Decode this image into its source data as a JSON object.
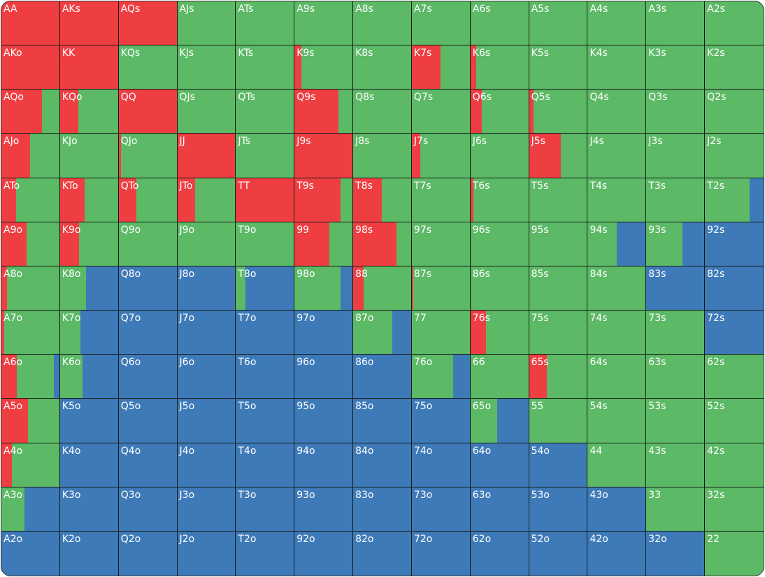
{
  "colors": {
    "raise": "#ef3e42",
    "call": "#5cb966",
    "fold": "#3e7ab8"
  },
  "grid": {
    "rows": [
      [
        {
          "hand": "AA",
          "raise": 1,
          "call": 0,
          "fold": 0
        },
        {
          "hand": "AKs",
          "raise": 1,
          "call": 0,
          "fold": 0
        },
        {
          "hand": "AQs",
          "raise": 1,
          "call": 0,
          "fold": 0
        },
        {
          "hand": "AJs",
          "raise": 0,
          "call": 1,
          "fold": 0
        },
        {
          "hand": "ATs",
          "raise": 0,
          "call": 1,
          "fold": 0
        },
        {
          "hand": "A9s",
          "raise": 0,
          "call": 1,
          "fold": 0
        },
        {
          "hand": "A8s",
          "raise": 0,
          "call": 1,
          "fold": 0
        },
        {
          "hand": "A7s",
          "raise": 0,
          "call": 1,
          "fold": 0
        },
        {
          "hand": "A6s",
          "raise": 0,
          "call": 1,
          "fold": 0
        },
        {
          "hand": "A5s",
          "raise": 0,
          "call": 1,
          "fold": 0
        },
        {
          "hand": "A4s",
          "raise": 0,
          "call": 1,
          "fold": 0
        },
        {
          "hand": "A3s",
          "raise": 0,
          "call": 1,
          "fold": 0
        },
        {
          "hand": "A2s",
          "raise": 0,
          "call": 1,
          "fold": 0
        }
      ],
      [
        {
          "hand": "AKo",
          "raise": 1,
          "call": 0,
          "fold": 0
        },
        {
          "hand": "KK",
          "raise": 1,
          "call": 0,
          "fold": 0
        },
        {
          "hand": "KQs",
          "raise": 0,
          "call": 1,
          "fold": 0
        },
        {
          "hand": "KJs",
          "raise": 0,
          "call": 1,
          "fold": 0
        },
        {
          "hand": "KTs",
          "raise": 0,
          "call": 1,
          "fold": 0
        },
        {
          "hand": "K9s",
          "raise": 0.12,
          "call": 0.88,
          "fold": 0
        },
        {
          "hand": "K8s",
          "raise": 0,
          "call": 1,
          "fold": 0
        },
        {
          "hand": "K7s",
          "raise": 0.5,
          "call": 0.5,
          "fold": 0
        },
        {
          "hand": "K6s",
          "raise": 0.1,
          "call": 0.9,
          "fold": 0
        },
        {
          "hand": "K5s",
          "raise": 0,
          "call": 1,
          "fold": 0
        },
        {
          "hand": "K4s",
          "raise": 0,
          "call": 1,
          "fold": 0
        },
        {
          "hand": "K3s",
          "raise": 0,
          "call": 1,
          "fold": 0
        },
        {
          "hand": "K2s",
          "raise": 0,
          "call": 1,
          "fold": 0
        }
      ],
      [
        {
          "hand": "AQo",
          "raise": 0.7,
          "call": 0.3,
          "fold": 0
        },
        {
          "hand": "KQo",
          "raise": 0.31,
          "call": 0.69,
          "fold": 0
        },
        {
          "hand": "QQ",
          "raise": 1,
          "call": 0,
          "fold": 0
        },
        {
          "hand": "QJs",
          "raise": 0,
          "call": 1,
          "fold": 0
        },
        {
          "hand": "QTs",
          "raise": 0,
          "call": 1,
          "fold": 0
        },
        {
          "hand": "Q9s",
          "raise": 0.76,
          "call": 0.24,
          "fold": 0
        },
        {
          "hand": "Q8s",
          "raise": 0,
          "call": 1,
          "fold": 0
        },
        {
          "hand": "Q7s",
          "raise": 0,
          "call": 1,
          "fold": 0
        },
        {
          "hand": "Q6s",
          "raise": 0.2,
          "call": 0.8,
          "fold": 0
        },
        {
          "hand": "Q5s",
          "raise": 0.08,
          "call": 0.92,
          "fold": 0
        },
        {
          "hand": "Q4s",
          "raise": 0,
          "call": 1,
          "fold": 0
        },
        {
          "hand": "Q3s",
          "raise": 0,
          "call": 1,
          "fold": 0
        },
        {
          "hand": "Q2s",
          "raise": 0,
          "call": 1,
          "fold": 0
        }
      ],
      [
        {
          "hand": "AJo",
          "raise": 0.5,
          "call": 0.5,
          "fold": 0
        },
        {
          "hand": "KJo",
          "raise": 0,
          "call": 1,
          "fold": 0
        },
        {
          "hand": "QJo",
          "raise": 0.04,
          "call": 0.96,
          "fold": 0
        },
        {
          "hand": "JJ",
          "raise": 1,
          "call": 0,
          "fold": 0
        },
        {
          "hand": "JTs",
          "raise": 0,
          "call": 1,
          "fold": 0
        },
        {
          "hand": "J9s",
          "raise": 1,
          "call": 0,
          "fold": 0
        },
        {
          "hand": "J8s",
          "raise": 0,
          "call": 1,
          "fold": 0
        },
        {
          "hand": "J7s",
          "raise": 0.14,
          "call": 0.86,
          "fold": 0
        },
        {
          "hand": "J6s",
          "raise": 0,
          "call": 1,
          "fold": 0
        },
        {
          "hand": "J5s",
          "raise": 0.55,
          "call": 0.45,
          "fold": 0
        },
        {
          "hand": "J4s",
          "raise": 0,
          "call": 1,
          "fold": 0
        },
        {
          "hand": "J3s",
          "raise": 0,
          "call": 1,
          "fold": 0
        },
        {
          "hand": "J2s",
          "raise": 0,
          "call": 1,
          "fold": 0
        }
      ],
      [
        {
          "hand": "ATo",
          "raise": 0.25,
          "call": 0.75,
          "fold": 0
        },
        {
          "hand": "KTo",
          "raise": 0.43,
          "call": 0.57,
          "fold": 0
        },
        {
          "hand": "QTo",
          "raise": 0.3,
          "call": 0.7,
          "fold": 0
        },
        {
          "hand": "JTo",
          "raise": 0.31,
          "call": 0.69,
          "fold": 0
        },
        {
          "hand": "TT",
          "raise": 1,
          "call": 0,
          "fold": 0
        },
        {
          "hand": "T9s",
          "raise": 0.8,
          "call": 0.2,
          "fold": 0
        },
        {
          "hand": "T8s",
          "raise": 0.5,
          "call": 0.5,
          "fold": 0
        },
        {
          "hand": "T7s",
          "raise": 0,
          "call": 1,
          "fold": 0
        },
        {
          "hand": "T6s",
          "raise": 0.05,
          "call": 0.95,
          "fold": 0
        },
        {
          "hand": "T5s",
          "raise": 0,
          "call": 1,
          "fold": 0
        },
        {
          "hand": "T4s",
          "raise": 0,
          "call": 1,
          "fold": 0
        },
        {
          "hand": "T3s",
          "raise": 0,
          "call": 1,
          "fold": 0
        },
        {
          "hand": "T2s",
          "raise": 0,
          "call": 0.76,
          "fold": 0.24
        }
      ],
      [
        {
          "hand": "A9o",
          "raise": 0.44,
          "call": 0.56,
          "fold": 0
        },
        {
          "hand": "K9o",
          "raise": 0.33,
          "call": 0.67,
          "fold": 0
        },
        {
          "hand": "Q9o",
          "raise": 0,
          "call": 1,
          "fold": 0
        },
        {
          "hand": "J9o",
          "raise": 0,
          "call": 1,
          "fold": 0
        },
        {
          "hand": "T9o",
          "raise": 0,
          "call": 1,
          "fold": 0
        },
        {
          "hand": "99",
          "raise": 0.6,
          "call": 0.4,
          "fold": 0
        },
        {
          "hand": "98s",
          "raise": 0.75,
          "call": 0.25,
          "fold": 0
        },
        {
          "hand": "97s",
          "raise": 0,
          "call": 1,
          "fold": 0
        },
        {
          "hand": "96s",
          "raise": 0,
          "call": 1,
          "fold": 0
        },
        {
          "hand": "95s",
          "raise": 0,
          "call": 1,
          "fold": 0
        },
        {
          "hand": "94s",
          "raise": 0,
          "call": 0.5,
          "fold": 0.5
        },
        {
          "hand": "93s",
          "raise": 0,
          "call": 0.62,
          "fold": 0.38
        },
        {
          "hand": "92s",
          "raise": 0,
          "call": 0,
          "fold": 1
        }
      ],
      [
        {
          "hand": "A8o",
          "raise": 0.1,
          "call": 0.9,
          "fold": 0
        },
        {
          "hand": "K8o",
          "raise": 0,
          "call": 0.45,
          "fold": 0.55
        },
        {
          "hand": "Q8o",
          "raise": 0,
          "call": 0,
          "fold": 1
        },
        {
          "hand": "J8o",
          "raise": 0,
          "call": 0,
          "fold": 1
        },
        {
          "hand": "T8o",
          "raise": 0,
          "call": 0.16,
          "fold": 0.84
        },
        {
          "hand": "98o",
          "raise": 0,
          "call": 0.79,
          "fold": 0.21
        },
        {
          "hand": "88",
          "raise": 0.18,
          "call": 0.82,
          "fold": 0
        },
        {
          "hand": "87s",
          "raise": 0.03,
          "call": 0.97,
          "fold": 0
        },
        {
          "hand": "86s",
          "raise": 0,
          "call": 1,
          "fold": 0
        },
        {
          "hand": "85s",
          "raise": 0,
          "call": 1,
          "fold": 0
        },
        {
          "hand": "84s",
          "raise": 0,
          "call": 1,
          "fold": 0
        },
        {
          "hand": "83s",
          "raise": 0,
          "call": 0,
          "fold": 1
        },
        {
          "hand": "82s",
          "raise": 0,
          "call": 0,
          "fold": 1
        }
      ],
      [
        {
          "hand": "A7o",
          "raise": 0.05,
          "call": 0.95,
          "fold": 0
        },
        {
          "hand": "K7o",
          "raise": 0,
          "call": 0.35,
          "fold": 0.65
        },
        {
          "hand": "Q7o",
          "raise": 0,
          "call": 0,
          "fold": 1
        },
        {
          "hand": "J7o",
          "raise": 0,
          "call": 0,
          "fold": 1
        },
        {
          "hand": "T7o",
          "raise": 0,
          "call": 0,
          "fold": 1
        },
        {
          "hand": "97o",
          "raise": 0,
          "call": 0,
          "fold": 1
        },
        {
          "hand": "87o",
          "raise": 0,
          "call": 0.67,
          "fold": 0.33
        },
        {
          "hand": "77",
          "raise": 0,
          "call": 1,
          "fold": 0
        },
        {
          "hand": "76s",
          "raise": 0.27,
          "call": 0.73,
          "fold": 0
        },
        {
          "hand": "75s",
          "raise": 0,
          "call": 1,
          "fold": 0
        },
        {
          "hand": "74s",
          "raise": 0,
          "call": 1,
          "fold": 0
        },
        {
          "hand": "73s",
          "raise": 0,
          "call": 1,
          "fold": 0
        },
        {
          "hand": "72s",
          "raise": 0,
          "call": 0,
          "fold": 1
        }
      ],
      [
        {
          "hand": "A6o",
          "raise": 0.26,
          "call": 0.65,
          "fold": 0.09
        },
        {
          "hand": "K6o",
          "raise": 0,
          "call": 0.39,
          "fold": 0.61
        },
        {
          "hand": "Q6o",
          "raise": 0,
          "call": 0,
          "fold": 1
        },
        {
          "hand": "J6o",
          "raise": 0,
          "call": 0,
          "fold": 1
        },
        {
          "hand": "T6o",
          "raise": 0,
          "call": 0,
          "fold": 1
        },
        {
          "hand": "96o",
          "raise": 0,
          "call": 0,
          "fold": 1
        },
        {
          "hand": "86o",
          "raise": 0,
          "call": 0,
          "fold": 1
        },
        {
          "hand": "76o",
          "raise": 0,
          "call": 0.71,
          "fold": 0.29
        },
        {
          "hand": "66",
          "raise": 0,
          "call": 1,
          "fold": 0
        },
        {
          "hand": "65s",
          "raise": 0.31,
          "call": 0.69,
          "fold": 0
        },
        {
          "hand": "64s",
          "raise": 0,
          "call": 1,
          "fold": 0
        },
        {
          "hand": "63s",
          "raise": 0,
          "call": 1,
          "fold": 0
        },
        {
          "hand": "62s",
          "raise": 0,
          "call": 1,
          "fold": 0
        }
      ],
      [
        {
          "hand": "A5o",
          "raise": 0.46,
          "call": 0.54,
          "fold": 0
        },
        {
          "hand": "K5o",
          "raise": 0,
          "call": 0,
          "fold": 1
        },
        {
          "hand": "Q5o",
          "raise": 0,
          "call": 0,
          "fold": 1
        },
        {
          "hand": "J5o",
          "raise": 0,
          "call": 0,
          "fold": 1
        },
        {
          "hand": "T5o",
          "raise": 0,
          "call": 0,
          "fold": 1
        },
        {
          "hand": "95o",
          "raise": 0,
          "call": 0,
          "fold": 1
        },
        {
          "hand": "85o",
          "raise": 0,
          "call": 0,
          "fold": 1
        },
        {
          "hand": "75o",
          "raise": 0,
          "call": 0,
          "fold": 1
        },
        {
          "hand": "65o",
          "raise": 0,
          "call": 0.46,
          "fold": 0.54
        },
        {
          "hand": "55",
          "raise": 0,
          "call": 1,
          "fold": 0
        },
        {
          "hand": "54s",
          "raise": 0,
          "call": 1,
          "fold": 0
        },
        {
          "hand": "53s",
          "raise": 0,
          "call": 1,
          "fold": 0
        },
        {
          "hand": "52s",
          "raise": 0,
          "call": 1,
          "fold": 0
        }
      ],
      [
        {
          "hand": "A4o",
          "raise": 0.18,
          "call": 0.82,
          "fold": 0
        },
        {
          "hand": "K4o",
          "raise": 0,
          "call": 0,
          "fold": 1
        },
        {
          "hand": "Q4o",
          "raise": 0,
          "call": 0,
          "fold": 1
        },
        {
          "hand": "J4o",
          "raise": 0,
          "call": 0,
          "fold": 1
        },
        {
          "hand": "T4o",
          "raise": 0,
          "call": 0,
          "fold": 1
        },
        {
          "hand": "94o",
          "raise": 0,
          "call": 0,
          "fold": 1
        },
        {
          "hand": "84o",
          "raise": 0,
          "call": 0,
          "fold": 1
        },
        {
          "hand": "74o",
          "raise": 0,
          "call": 0,
          "fold": 1
        },
        {
          "hand": "64o",
          "raise": 0,
          "call": 0,
          "fold": 1
        },
        {
          "hand": "54o",
          "raise": 0,
          "call": 0,
          "fold": 1
        },
        {
          "hand": "44",
          "raise": 0,
          "call": 1,
          "fold": 0
        },
        {
          "hand": "43s",
          "raise": 0,
          "call": 1,
          "fold": 0
        },
        {
          "hand": "42s",
          "raise": 0,
          "call": 1,
          "fold": 0
        }
      ],
      [
        {
          "hand": "A3o",
          "raise": 0,
          "call": 0.4,
          "fold": 0.6
        },
        {
          "hand": "K3o",
          "raise": 0,
          "call": 0,
          "fold": 1
        },
        {
          "hand": "Q3o",
          "raise": 0,
          "call": 0,
          "fold": 1
        },
        {
          "hand": "J3o",
          "raise": 0,
          "call": 0,
          "fold": 1
        },
        {
          "hand": "T3o",
          "raise": 0,
          "call": 0,
          "fold": 1
        },
        {
          "hand": "93o",
          "raise": 0,
          "call": 0,
          "fold": 1
        },
        {
          "hand": "83o",
          "raise": 0,
          "call": 0,
          "fold": 1
        },
        {
          "hand": "73o",
          "raise": 0,
          "call": 0,
          "fold": 1
        },
        {
          "hand": "63o",
          "raise": 0,
          "call": 0,
          "fold": 1
        },
        {
          "hand": "53o",
          "raise": 0,
          "call": 0,
          "fold": 1
        },
        {
          "hand": "43o",
          "raise": 0,
          "call": 0,
          "fold": 1
        },
        {
          "hand": "33",
          "raise": 0,
          "call": 1,
          "fold": 0
        },
        {
          "hand": "32s",
          "raise": 0,
          "call": 1,
          "fold": 0
        }
      ],
      [
        {
          "hand": "A2o",
          "raise": 0,
          "call": 0,
          "fold": 1
        },
        {
          "hand": "K2o",
          "raise": 0,
          "call": 0,
          "fold": 1
        },
        {
          "hand": "Q2o",
          "raise": 0,
          "call": 0,
          "fold": 1
        },
        {
          "hand": "J2o",
          "raise": 0,
          "call": 0,
          "fold": 1
        },
        {
          "hand": "T2o",
          "raise": 0,
          "call": 0,
          "fold": 1
        },
        {
          "hand": "92o",
          "raise": 0,
          "call": 0,
          "fold": 1
        },
        {
          "hand": "82o",
          "raise": 0,
          "call": 0,
          "fold": 1
        },
        {
          "hand": "72o",
          "raise": 0,
          "call": 0,
          "fold": 1
        },
        {
          "hand": "62o",
          "raise": 0,
          "call": 0,
          "fold": 1
        },
        {
          "hand": "52o",
          "raise": 0,
          "call": 0,
          "fold": 1
        },
        {
          "hand": "42o",
          "raise": 0,
          "call": 0,
          "fold": 1
        },
        {
          "hand": "32o",
          "raise": 0,
          "call": 0,
          "fold": 1
        },
        {
          "hand": "22",
          "raise": 0,
          "call": 1,
          "fold": 0
        }
      ]
    ]
  }
}
